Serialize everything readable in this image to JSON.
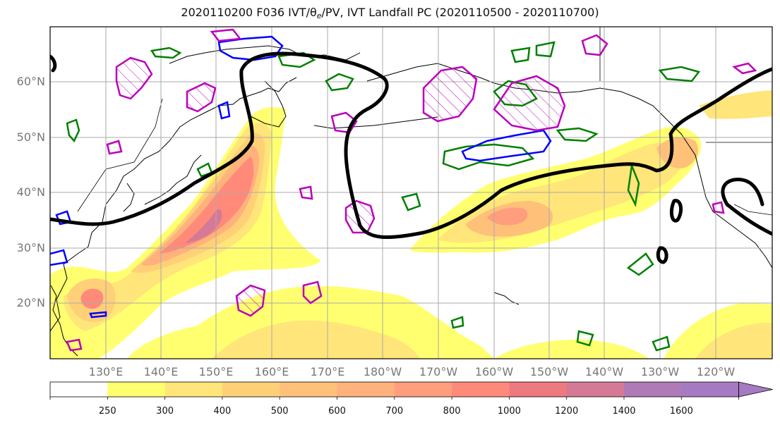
{
  "title": {
    "prefix": "2020110200 F036 IVT/θ",
    "sub": "e",
    "suffix": "/PV, IVT Landfall PC (2020110500 - 2020110700)"
  },
  "axes": {
    "lat_labels": [
      "60°N",
      "50°N",
      "40°N",
      "30°N",
      "20°N"
    ],
    "lon_labels": [
      "130°E",
      "140°E",
      "150°E",
      "160°E",
      "170°E",
      "180°W",
      "170°W",
      "160°W",
      "150°W",
      "140°W",
      "130°W",
      "120°W"
    ]
  },
  "colorbar": {
    "levels": [
      "250",
      "300",
      "400",
      "500",
      "600",
      "700",
      "800",
      "1000",
      "1200",
      "1400",
      "1600"
    ],
    "colors": [
      "#ffffff",
      "#ffff70",
      "#ffe57a",
      "#ffd078",
      "#ffc07a",
      "#ffb27c",
      "#ff9e7c",
      "#ff8a7a",
      "#ee7a80",
      "#d47a96",
      "#b07ab8",
      "#a67ac2",
      "#a67ac2"
    ]
  },
  "legend_colors": {
    "pc_contour": "#000000",
    "pv_contour": "#bb00bb",
    "theta_e_contour": "#0000ff",
    "ivt_contour": "#008000",
    "coastline": "#000000",
    "grid": "#aaaaaa"
  }
}
